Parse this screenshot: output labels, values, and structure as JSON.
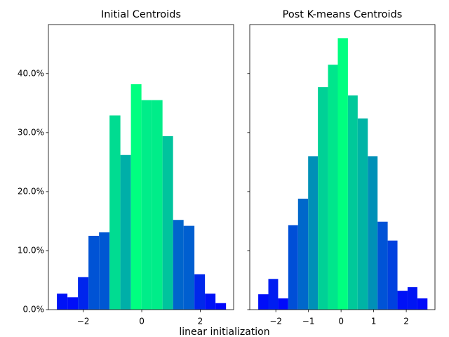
{
  "chart_data": [
    {
      "type": "histogram",
      "title": "Initial Centroids",
      "bins": [
        -2.9,
        -2.54,
        -2.18,
        -1.82,
        -1.46,
        -1.1,
        -0.73,
        -0.37,
        -0.01,
        0.35,
        0.71,
        1.07,
        1.43,
        1.8,
        2.16,
        2.52,
        2.88
      ],
      "values": [
        2.7,
        2.1,
        5.5,
        12.5,
        13.1,
        32.9,
        26.2,
        38.2,
        35.5,
        35.5,
        29.4,
        15.2,
        14.2,
        6.0,
        2.7,
        1.1
      ],
      "colors": [
        "#0012f6",
        "#000ef8",
        "#0025ed",
        "#0053d5",
        "#0057d3",
        "#00dc91",
        "#00afa8",
        "#00ff80",
        "#00ed89",
        "#00ed89",
        "#00c49d",
        "#0065cc",
        "#005fd0",
        "#0028eb",
        "#0012f6",
        "#0007fb"
      ],
      "xlim": [
        -3.19,
        3.14
      ],
      "xticks": [
        {
          "value": -2,
          "label": "−2"
        },
        0,
        2
      ],
      "ylim": [
        0,
        48.3
      ],
      "yticks": [
        {
          "value": 0,
          "label": "0.0%"
        },
        {
          "value": 10,
          "label": "10.0%"
        },
        {
          "value": 20,
          "label": "20.0%"
        },
        {
          "value": 30,
          "label": "30.0%"
        },
        {
          "value": 40,
          "label": "40.0%"
        }
      ]
    },
    {
      "type": "histogram",
      "title": "Post K-means Centroids",
      "bins": [
        -2.54,
        -2.23,
        -1.93,
        -1.62,
        -1.32,
        -1.01,
        -0.71,
        -0.4,
        -0.1,
        0.21,
        0.51,
        0.82,
        1.12,
        1.43,
        1.73,
        2.04,
        2.34,
        2.65
      ],
      "values": [
        2.6,
        5.2,
        1.9,
        14.3,
        18.8,
        26.0,
        37.7,
        41.5,
        46.0,
        36.3,
        32.4,
        26.0,
        14.9,
        11.7,
        3.2,
        3.8,
        1.9
      ],
      "colors": [
        "#000ef8",
        "#001df1",
        "#000afa",
        "#004fd7",
        "#0068cb",
        "#0090b7",
        "#00d196",
        "#00e68c",
        "#00ff80",
        "#00c99a",
        "#00b4a5",
        "#0090b7",
        "#0053d6",
        "#0041df",
        "#0012f6",
        "#0015f4",
        "#000afa"
      ],
      "xlim": [
        -2.8,
        2.88
      ],
      "xticks": [
        {
          "value": -2,
          "label": "−2"
        },
        {
          "value": -1,
          "label": "−1"
        },
        0,
        1,
        2
      ],
      "ylim": [
        0,
        48.3
      ],
      "yticks": [
        0,
        10,
        20,
        30,
        40
      ]
    }
  ],
  "supxlabel": "linear initialization"
}
